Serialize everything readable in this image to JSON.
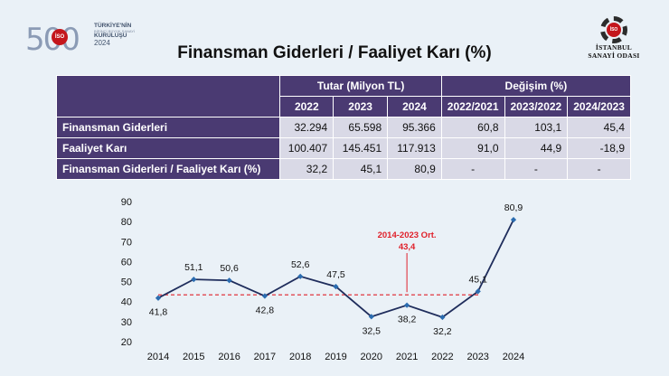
{
  "logo_left": {
    "number": "500",
    "badge": "İSO",
    "line1": "TÜRKİYE'NİN",
    "line2": "BİRİNCİ BÜYÜK SANAYİ",
    "line3": "KURULUŞU",
    "line4": "2024"
  },
  "logo_right": {
    "badge": "İSO",
    "line1": "İSTANBUL",
    "line2": "SANAYİ ODASI"
  },
  "title": "Finansman Giderleri / Faaliyet Karı (%)",
  "table": {
    "group_headers": [
      "Tutar (Milyon TL)",
      "Değişim (%)"
    ],
    "column_headers": [
      "2022",
      "2023",
      "2024",
      "2022/2021",
      "2023/2022",
      "2024/2023"
    ],
    "rows": [
      {
        "label": "Finansman Giderleri",
        "values": [
          "32.294",
          "65.598",
          "95.366",
          "60,8",
          "103,1",
          "45,4"
        ]
      },
      {
        "label": "Faaliyet Karı",
        "values": [
          "100.407",
          "145.451",
          "117.913",
          "91,0",
          "44,9",
          "-18,9"
        ]
      },
      {
        "label": "Finansman Giderleri / Faaliyet Karı (%)",
        "values": [
          "32,2",
          "45,1",
          "80,9",
          "-",
          "-",
          "-"
        ]
      }
    ]
  },
  "chart_data": {
    "type": "line",
    "x": [
      "2014",
      "2015",
      "2016",
      "2017",
      "2018",
      "2019",
      "2020",
      "2021",
      "2022",
      "2023",
      "2024"
    ],
    "y": [
      41.8,
      51.1,
      50.6,
      42.8,
      52.6,
      47.5,
      32.5,
      38.2,
      32.2,
      45.1,
      80.9
    ],
    "labels": [
      "41,8",
      "51,1",
      "50,6",
      "42,8",
      "52,6",
      "47,5",
      "32,5",
      "38,2",
      "32,2",
      "45,1",
      "80,9"
    ],
    "ylim": [
      20,
      90
    ],
    "yticks": [
      20,
      30,
      40,
      50,
      60,
      70,
      80,
      90
    ],
    "reference_line": {
      "value": 43.4,
      "label_line1": "2014-2023 Ort.",
      "label_line2": "43,4"
    },
    "line_color": "#1f2d5c",
    "reference_color": "#e0202a",
    "marker_color": "#2b6cb0"
  }
}
